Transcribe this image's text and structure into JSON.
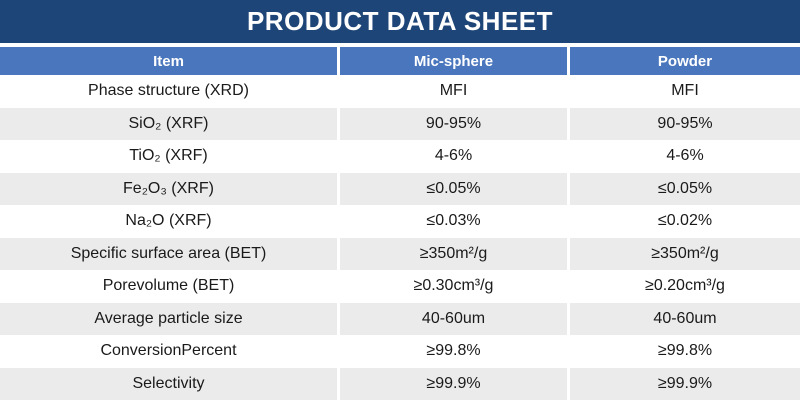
{
  "title": "PRODUCT DATA SHEET",
  "colors": {
    "title_bar_background": "#1E4577",
    "header_row_background": "#4A76BD",
    "alt_row_background": "#EBEBEB",
    "header_text": "#FFFFFF",
    "body_text": "#1A1A1A"
  },
  "table": {
    "columns": [
      "Item",
      "Mic-sphere",
      "Powder"
    ],
    "rows": [
      {
        "item": "Phase structure (XRD)",
        "mic_sphere": "MFI",
        "powder": "MFI"
      },
      {
        "item": "SiO₂ (XRF)",
        "mic_sphere": "90-95%",
        "powder": "90-95%"
      },
      {
        "item": "TiO₂ (XRF)",
        "mic_sphere": "4-6%",
        "powder": "4-6%"
      },
      {
        "item": "Fe₂O₃ (XRF)",
        "mic_sphere": "≤0.05%",
        "powder": "≤0.05%"
      },
      {
        "item": "Na₂O (XRF)",
        "mic_sphere": "≤0.03%",
        "powder": "≤0.02%"
      },
      {
        "item": "Specific surface area (BET)",
        "mic_sphere": "≥350m²/g",
        "powder": "≥350m²/g"
      },
      {
        "item": "Porevolume (BET)",
        "mic_sphere": "≥0.30cm³/g",
        "powder": "≥0.20cm³/g"
      },
      {
        "item": "Average particle size",
        "mic_sphere": "40-60um",
        "powder": "40-60um"
      },
      {
        "item": "ConversionPercent",
        "mic_sphere": "≥99.8%",
        "powder": "≥99.8%"
      },
      {
        "item": "Selectivity",
        "mic_sphere": "≥99.9%",
        "powder": "≥99.9%"
      }
    ]
  }
}
